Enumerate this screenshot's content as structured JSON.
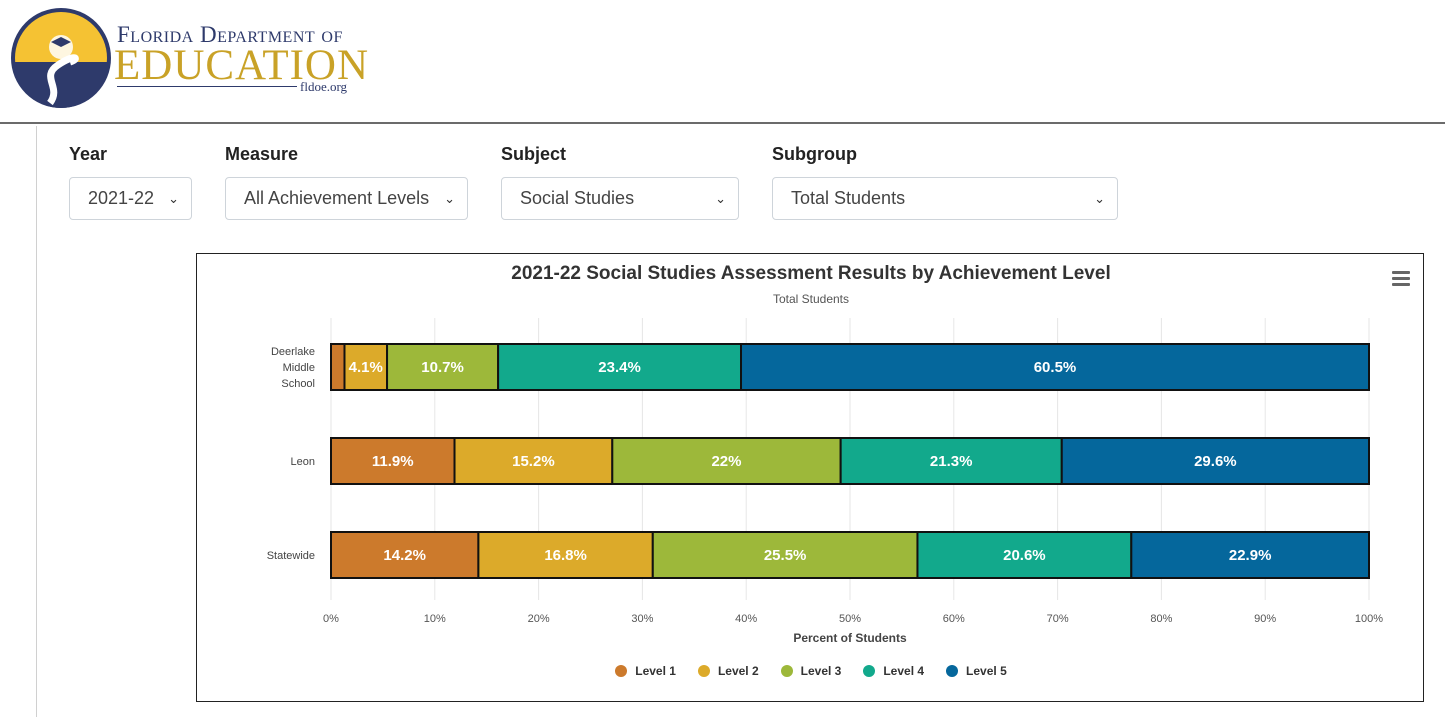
{
  "header": {
    "logo_line1": "Florida Department of",
    "logo_line2": "EDUCATION",
    "logo_url": "fldoe.org"
  },
  "filters": [
    {
      "label": "Year",
      "value": "2021-22"
    },
    {
      "label": "Measure",
      "value": "All Achievement Levels"
    },
    {
      "label": "Subject",
      "value": "Social Studies"
    },
    {
      "label": "Subgroup",
      "value": "Total Students"
    }
  ],
  "colors": {
    "level1": "#cc7a2c",
    "level2": "#dcaa2a",
    "level3": "#9db83a",
    "level4": "#12a98c",
    "level5": "#05679c"
  },
  "chart_data": {
    "type": "bar",
    "orientation": "horizontal",
    "stacked": true,
    "title": "2021-22 Social Studies Assessment Results by Achievement Level",
    "subtitle": "Total Students",
    "xlabel": "Percent of Students",
    "ylabel": "",
    "xlim": [
      0,
      100
    ],
    "x_ticks": [
      "0%",
      "10%",
      "20%",
      "30%",
      "40%",
      "50%",
      "60%",
      "70%",
      "80%",
      "90%",
      "100%"
    ],
    "grid": true,
    "legend_position": "bottom",
    "categories": [
      "Deerlake Middle School",
      "Leon",
      "Statewide"
    ],
    "category_lines": [
      [
        "Deerlake",
        "Middle",
        "School"
      ],
      [
        "Leon"
      ],
      [
        "Statewide"
      ]
    ],
    "series": [
      {
        "name": "Level 1",
        "color": "#cc7a2c",
        "values": [
          1.3,
          11.9,
          14.2
        ],
        "labels": [
          "",
          "11.9%",
          "14.2%"
        ]
      },
      {
        "name": "Level 2",
        "color": "#dcaa2a",
        "values": [
          4.1,
          15.2,
          16.8
        ],
        "labels": [
          "4.1%",
          "15.2%",
          "16.8%"
        ]
      },
      {
        "name": "Level 3",
        "color": "#9db83a",
        "values": [
          10.7,
          22,
          25.5
        ],
        "labels": [
          "10.7%",
          "22%",
          "25.5%"
        ]
      },
      {
        "name": "Level 4",
        "color": "#12a98c",
        "values": [
          23.4,
          21.3,
          20.6
        ],
        "labels": [
          "23.4%",
          "21.3%",
          "20.6%"
        ]
      },
      {
        "name": "Level 5",
        "color": "#05679c",
        "values": [
          60.5,
          29.6,
          22.9
        ],
        "labels": [
          "60.5%",
          "29.6%",
          "22.9%"
        ]
      }
    ]
  }
}
